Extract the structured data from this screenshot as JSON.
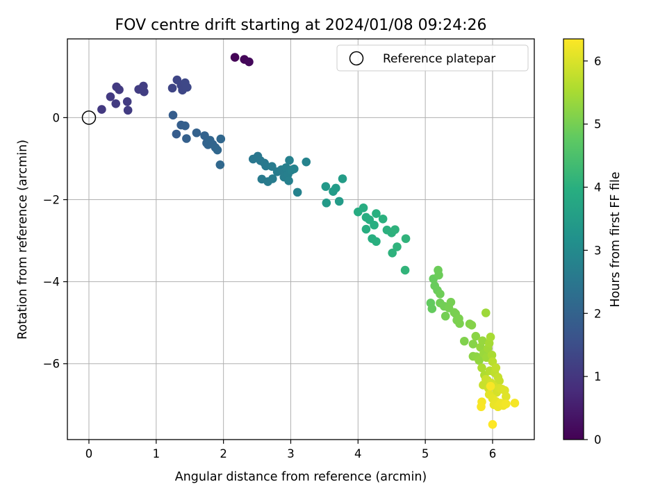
{
  "chart_data": {
    "type": "scatter",
    "title": "FOV centre drift starting at 2024/01/08 09:24:26",
    "xlabel": "Angular distance from reference (arcmin)",
    "ylabel": "Rotation from reference (arcmin)",
    "xlim": [
      -0.32,
      6.62
    ],
    "ylim": [
      -7.85,
      1.92
    ],
    "xticks": [
      0,
      1,
      2,
      3,
      4,
      5,
      6
    ],
    "yticks": [
      0,
      -2,
      -4,
      -6
    ],
    "grid": true,
    "legend": {
      "placement": "upper right",
      "entries": [
        "Reference platepar"
      ]
    },
    "reference_point": {
      "x": 0,
      "y": 0
    },
    "colorbar": {
      "label": "Hours from first FF file",
      "range": [
        0,
        6.35
      ],
      "ticks": [
        0,
        1,
        2,
        3,
        4,
        5,
        6
      ],
      "colormap": "viridis"
    },
    "series": [
      {
        "points": [
          [
            2.17,
            1.47,
            0.05
          ],
          [
            2.31,
            1.42,
            0.08
          ],
          [
            2.38,
            1.36,
            0.12
          ],
          [
            0.19,
            0.2,
            1.05
          ],
          [
            0.32,
            0.51,
            1.07
          ],
          [
            0.41,
            0.75,
            1.08
          ],
          [
            0.45,
            0.68,
            1.09
          ],
          [
            0.4,
            0.34,
            1.1
          ],
          [
            0.57,
            0.39,
            1.11
          ],
          [
            0.58,
            0.18,
            1.12
          ],
          [
            0.74,
            0.69,
            1.14
          ],
          [
            0.81,
            0.77,
            1.15
          ],
          [
            0.82,
            0.63,
            1.16
          ],
          [
            1.24,
            0.72,
            1.3
          ],
          [
            1.31,
            0.92,
            1.32
          ],
          [
            1.37,
            0.79,
            1.34
          ],
          [
            1.39,
            0.67,
            1.36
          ],
          [
            1.43,
            0.85,
            1.37
          ],
          [
            1.46,
            0.74,
            1.38
          ],
          [
            1.25,
            0.06,
            1.85
          ],
          [
            1.3,
            -0.4,
            1.87
          ],
          [
            1.37,
            -0.18,
            1.89
          ],
          [
            1.43,
            -0.2,
            1.91
          ],
          [
            1.45,
            -0.51,
            1.93
          ],
          [
            1.6,
            -0.37,
            1.97
          ],
          [
            1.72,
            -0.44,
            2.0
          ],
          [
            1.75,
            -0.62,
            2.02
          ],
          [
            1.77,
            -0.66,
            2.03
          ],
          [
            1.8,
            -0.55,
            2.05
          ],
          [
            1.84,
            -0.65,
            2.06
          ],
          [
            1.88,
            -0.73,
            2.08
          ],
          [
            1.91,
            -0.79,
            2.1
          ],
          [
            1.96,
            -0.52,
            2.12
          ],
          [
            1.95,
            -1.15,
            2.14
          ],
          [
            2.44,
            -1.01,
            2.5
          ],
          [
            2.51,
            -0.94,
            2.52
          ],
          [
            2.55,
            -1.05,
            2.54
          ],
          [
            2.61,
            -1.11,
            2.56
          ],
          [
            2.63,
            -1.18,
            2.57
          ],
          [
            2.57,
            -1.5,
            2.59
          ],
          [
            2.66,
            -1.56,
            2.6
          ],
          [
            2.72,
            -1.19,
            2.62
          ],
          [
            2.73,
            -1.49,
            2.63
          ],
          [
            2.8,
            -1.32,
            2.65
          ],
          [
            2.86,
            -1.27,
            2.67
          ],
          [
            2.9,
            -1.45,
            2.69
          ],
          [
            2.93,
            -1.22,
            2.71
          ],
          [
            2.96,
            -1.38,
            2.72
          ],
          [
            2.97,
            -1.54,
            2.74
          ],
          [
            2.98,
            -1.04,
            2.75
          ],
          [
            3.01,
            -1.28,
            2.77
          ],
          [
            3.05,
            -1.25,
            2.78
          ],
          [
            3.1,
            -1.82,
            2.8
          ],
          [
            3.23,
            -1.08,
            2.82
          ],
          [
            3.52,
            -1.68,
            3.4
          ],
          [
            3.53,
            -2.08,
            3.42
          ],
          [
            3.63,
            -1.8,
            3.44
          ],
          [
            3.67,
            -1.72,
            3.45
          ],
          [
            3.72,
            -2.04,
            3.46
          ],
          [
            3.77,
            -1.49,
            3.48
          ],
          [
            4.0,
            -2.3,
            3.9
          ],
          [
            4.08,
            -2.2,
            3.92
          ],
          [
            4.12,
            -2.43,
            3.93
          ],
          [
            4.12,
            -2.72,
            3.94
          ],
          [
            4.17,
            -2.49,
            3.95
          ],
          [
            4.21,
            -2.95,
            3.97
          ],
          [
            4.24,
            -2.62,
            3.98
          ],
          [
            4.27,
            -2.34,
            3.99
          ],
          [
            4.27,
            -3.02,
            4.0
          ],
          [
            4.37,
            -2.47,
            4.02
          ],
          [
            4.43,
            -2.74,
            4.03
          ],
          [
            4.5,
            -2.81,
            4.04
          ],
          [
            4.51,
            -3.3,
            4.05
          ],
          [
            4.55,
            -2.73,
            4.07
          ],
          [
            4.58,
            -3.15,
            4.08
          ],
          [
            4.71,
            -2.95,
            4.1
          ],
          [
            4.7,
            -3.72,
            4.12
          ],
          [
            5.08,
            -4.52,
            4.8
          ],
          [
            5.1,
            -4.66,
            4.82
          ],
          [
            5.12,
            -3.93,
            4.84
          ],
          [
            5.14,
            -4.1,
            4.86
          ],
          [
            5.18,
            -4.21,
            4.88
          ],
          [
            5.19,
            -3.72,
            4.9
          ],
          [
            5.2,
            -3.84,
            4.9
          ],
          [
            5.22,
            -4.3,
            4.92
          ],
          [
            5.22,
            -4.52,
            4.94
          ],
          [
            5.28,
            -4.6,
            4.96
          ],
          [
            5.3,
            -4.84,
            4.98
          ],
          [
            5.35,
            -4.64,
            5.0
          ],
          [
            5.38,
            -4.5,
            5.0
          ],
          [
            5.43,
            -4.75,
            5.02
          ],
          [
            5.45,
            -4.78,
            5.03
          ],
          [
            5.47,
            -4.94,
            5.04
          ],
          [
            5.5,
            -4.9,
            5.05
          ],
          [
            5.51,
            -5.02,
            5.06
          ],
          [
            5.58,
            -5.45,
            5.1
          ],
          [
            5.66,
            -5.03,
            5.12
          ],
          [
            5.69,
            -5.06,
            5.15
          ],
          [
            5.71,
            -5.52,
            5.17
          ],
          [
            5.75,
            -5.33,
            5.2
          ],
          [
            5.71,
            -5.82,
            5.22
          ],
          [
            5.76,
            -5.83,
            5.25
          ],
          [
            5.8,
            -5.92,
            5.3
          ],
          [
            5.82,
            -5.6,
            5.32
          ],
          [
            5.85,
            -5.44,
            5.34
          ],
          [
            5.87,
            -5.75,
            5.37
          ],
          [
            5.9,
            -4.76,
            5.4
          ],
          [
            5.91,
            -5.85,
            5.42
          ],
          [
            5.93,
            -5.63,
            5.45
          ],
          [
            5.95,
            -5.5,
            5.48
          ],
          [
            5.97,
            -5.35,
            5.5
          ],
          [
            5.99,
            -5.79,
            5.53
          ],
          [
            5.84,
            -6.1,
            5.55
          ],
          [
            5.88,
            -6.28,
            5.58
          ],
          [
            5.92,
            -6.4,
            5.62
          ],
          [
            5.96,
            -6.17,
            5.65
          ],
          [
            6.0,
            -5.95,
            5.68
          ],
          [
            6.03,
            -6.22,
            5.72
          ],
          [
            6.05,
            -6.1,
            5.75
          ],
          [
            6.08,
            -6.33,
            5.78
          ],
          [
            6.1,
            -6.42,
            5.8
          ],
          [
            5.86,
            -6.52,
            5.82
          ],
          [
            5.9,
            -6.38,
            5.85
          ],
          [
            5.94,
            -6.6,
            5.88
          ],
          [
            5.98,
            -6.47,
            5.9
          ],
          [
            6.02,
            -6.55,
            5.93
          ],
          [
            6.06,
            -6.7,
            5.95
          ],
          [
            6.1,
            -6.6,
            5.98
          ],
          [
            6.14,
            -6.62,
            6.0
          ],
          [
            6.18,
            -6.65,
            6.03
          ],
          [
            6.2,
            -6.8,
            6.05
          ],
          [
            5.95,
            -6.75,
            6.08
          ],
          [
            6.0,
            -6.85,
            6.1
          ],
          [
            6.05,
            -6.92,
            6.13
          ],
          [
            6.02,
            -7.0,
            6.15
          ],
          [
            6.08,
            -7.05,
            6.18
          ],
          [
            6.12,
            -6.96,
            6.2
          ],
          [
            6.16,
            -7.02,
            6.22
          ],
          [
            6.2,
            -6.98,
            6.25
          ],
          [
            6.33,
            -6.96,
            6.27
          ],
          [
            5.84,
            -6.93,
            6.28
          ],
          [
            5.83,
            -7.05,
            6.3
          ],
          [
            5.97,
            -6.55,
            6.3
          ],
          [
            6.0,
            -7.48,
            6.35
          ]
        ]
      }
    ]
  }
}
